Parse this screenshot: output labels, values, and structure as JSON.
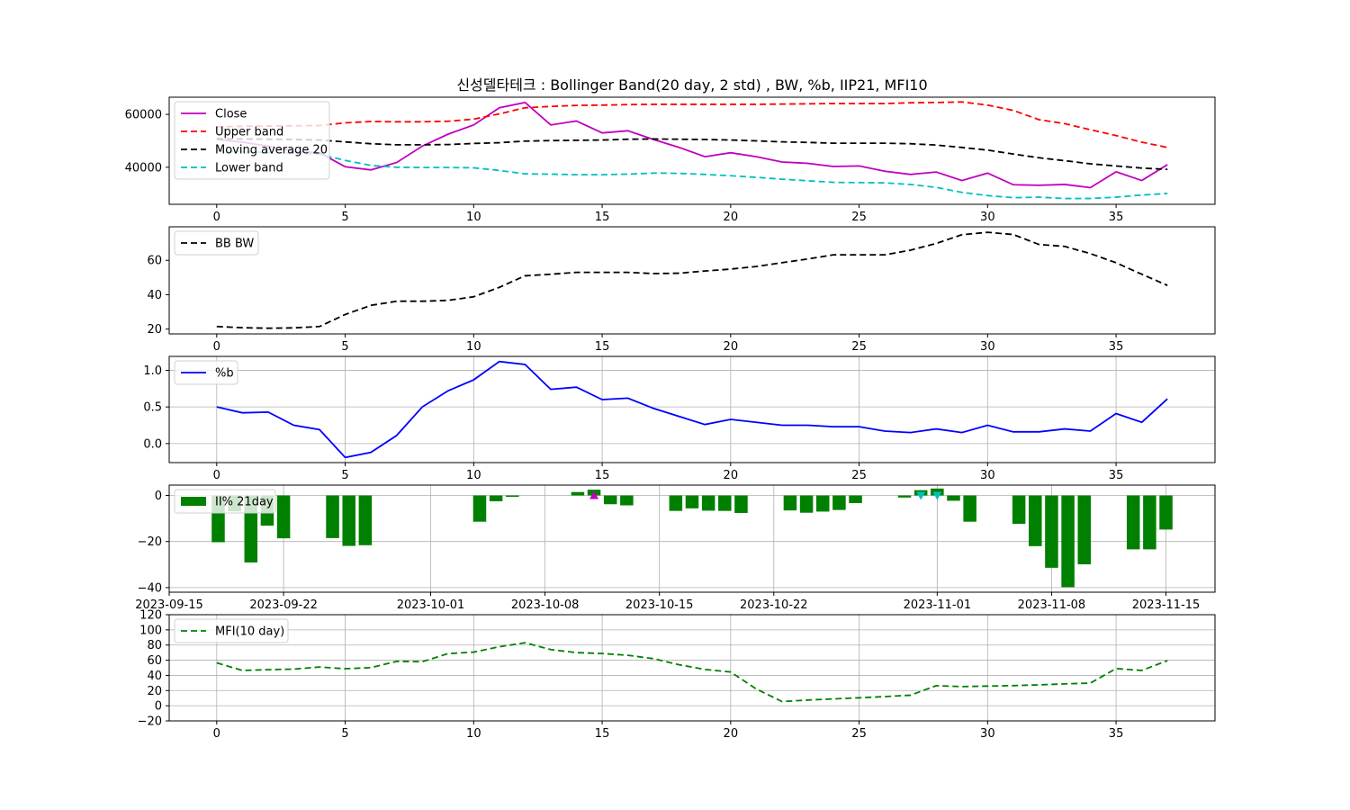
{
  "title": "신성델타테크 : Bollinger Band(20 day, 2 std) , BW, %b, IIP21, MFI10",
  "chart_data": [
    {
      "type": "line",
      "panel": "price",
      "x": [
        0,
        1,
        2,
        3,
        4,
        5,
        6,
        7,
        8,
        9,
        10,
        11,
        12,
        13,
        14,
        15,
        16,
        17,
        18,
        19,
        20,
        21,
        22,
        23,
        24,
        25,
        26,
        27,
        28,
        29,
        30,
        31,
        32,
        33,
        34,
        35,
        36,
        37
      ],
      "series": [
        {
          "name": "Close",
          "color": "#bf00bf",
          "style": "solid",
          "values": [
            50500,
            49500,
            48000,
            46000,
            45500,
            40200,
            39000,
            41800,
            48000,
            52500,
            56000,
            62500,
            64500,
            56000,
            57500,
            53000,
            53800,
            50500,
            47500,
            44000,
            45500,
            44000,
            42000,
            41500,
            40300,
            40500,
            38500,
            37300,
            38200,
            35000,
            37800,
            33400,
            33200,
            33500,
            32300,
            38300,
            35000,
            41000
          ]
        },
        {
          "name": "Upper band",
          "color": "#ff0000",
          "style": "dashed",
          "values": [
            55300,
            55500,
            55600,
            55700,
            55800,
            56800,
            57300,
            57200,
            57200,
            57400,
            58200,
            60200,
            62500,
            63000,
            63400,
            63500,
            63700,
            63800,
            63800,
            63800,
            63800,
            63800,
            63900,
            64000,
            64100,
            64100,
            64100,
            64400,
            64500,
            64700,
            63500,
            61500,
            58000,
            56500,
            54200,
            52000,
            49500,
            47500
          ]
        },
        {
          "name": "Moving average 20",
          "color": "#000000",
          "style": "dashed",
          "values": [
            50800,
            50700,
            50600,
            50500,
            50300,
            49600,
            48900,
            48500,
            48500,
            48600,
            49000,
            49300,
            49900,
            50100,
            50200,
            50300,
            50600,
            50700,
            50600,
            50500,
            50300,
            50000,
            49600,
            49400,
            49100,
            49100,
            49100,
            48900,
            48400,
            47500,
            46500,
            45000,
            43600,
            42500,
            41300,
            40500,
            39700,
            39200
          ]
        },
        {
          "name": "Lower band",
          "color": "#00bfbf",
          "style": "dashed",
          "values": [
            46200,
            45900,
            45600,
            45300,
            44900,
            42600,
            40700,
            40000,
            39900,
            39900,
            39800,
            38800,
            37500,
            37400,
            37200,
            37200,
            37400,
            37800,
            37700,
            37300,
            36800,
            36200,
            35500,
            34900,
            34300,
            34200,
            34100,
            33500,
            32400,
            30500,
            29300,
            28500,
            28700,
            28200,
            28200,
            28700,
            29500,
            30100
          ]
        }
      ],
      "xticks": [
        0,
        5,
        10,
        15,
        20,
        25,
        30,
        35
      ],
      "yticks": [
        40000,
        60000
      ],
      "xlim": [
        -1.85,
        38.85
      ],
      "ylim": [
        26000,
        66500
      ],
      "legend": "upper-left",
      "grid": false
    },
    {
      "type": "line",
      "panel": "bandwidth",
      "x": [
        0,
        1,
        2,
        3,
        4,
        5,
        6,
        7,
        8,
        9,
        10,
        11,
        12,
        13,
        14,
        15,
        16,
        17,
        18,
        19,
        20,
        21,
        22,
        23,
        24,
        25,
        26,
        27,
        28,
        29,
        30,
        31,
        32,
        33,
        34,
        35,
        36,
        37
      ],
      "series": [
        {
          "name": "BB BW",
          "color": "#000000",
          "style": "dashed",
          "values": [
            21.5,
            20.8,
            20.5,
            20.7,
            21.5,
            28.5,
            33.8,
            36.2,
            36.2,
            36.7,
            38.8,
            44.3,
            51.0,
            51.9,
            53.0,
            53.0,
            53.0,
            52.3,
            52.5,
            53.8,
            54.9,
            56.4,
            58.6,
            60.8,
            63.2,
            63.2,
            63.2,
            65.9,
            69.8,
            74.9,
            76.3,
            75.0,
            69.2,
            68.1,
            63.9,
            58.6,
            51.9,
            45.4
          ]
        }
      ],
      "xticks": [
        0,
        5,
        10,
        15,
        20,
        25,
        30,
        35
      ],
      "yticks": [
        20,
        40,
        60
      ],
      "xlim": [
        -1.85,
        38.85
      ],
      "ylim": [
        17.2,
        79.5
      ],
      "legend": "upper-left",
      "grid": false
    },
    {
      "type": "line",
      "panel": "percent-b",
      "x": [
        0,
        1,
        2,
        3,
        4,
        5,
        6,
        7,
        8,
        9,
        10,
        11,
        12,
        13,
        14,
        15,
        16,
        17,
        18,
        19,
        20,
        21,
        22,
        23,
        24,
        25,
        26,
        27,
        28,
        29,
        30,
        31,
        32,
        33,
        34,
        35,
        36,
        37
      ],
      "series": [
        {
          "name": "%b",
          "color": "#0000ff",
          "style": "solid",
          "values": [
            0.5,
            0.42,
            0.43,
            0.25,
            0.19,
            -0.19,
            -0.12,
            0.11,
            0.5,
            0.72,
            0.87,
            1.12,
            1.08,
            0.74,
            0.77,
            0.6,
            0.62,
            0.48,
            0.37,
            0.26,
            0.33,
            0.29,
            0.25,
            0.25,
            0.23,
            0.23,
            0.17,
            0.15,
            0.2,
            0.15,
            0.25,
            0.16,
            0.16,
            0.2,
            0.17,
            0.41,
            0.29,
            0.61
          ]
        }
      ],
      "xticks": [
        0,
        5,
        10,
        15,
        20,
        25,
        30,
        35
      ],
      "yticks": [
        0.0,
        0.5,
        1.0
      ],
      "ytick_labels": [
        "0.0",
        "0.5",
        "1.0"
      ],
      "xlim": [
        -1.85,
        38.85
      ],
      "ylim": [
        -0.26,
        1.19
      ],
      "legend": "upper-left",
      "grid": true
    },
    {
      "type": "bar",
      "panel": "ii-percent",
      "x_dates": [
        "2023-09-18",
        "2023-09-19",
        "2023-09-20",
        "2023-09-21",
        "2023-09-22",
        "2023-09-25",
        "2023-09-26",
        "2023-09-27",
        "2023-10-04",
        "2023-10-05",
        "2023-10-06",
        "2023-10-10",
        "2023-10-11",
        "2023-10-12",
        "2023-10-13",
        "2023-10-16",
        "2023-10-17",
        "2023-10-18",
        "2023-10-19",
        "2023-10-20",
        "2023-10-23",
        "2023-10-24",
        "2023-10-25",
        "2023-10-26",
        "2023-10-27",
        "2023-10-30",
        "2023-10-31",
        "2023-11-01",
        "2023-11-02",
        "2023-11-03",
        "2023-11-06",
        "2023-11-07",
        "2023-11-08",
        "2023-11-09",
        "2023-11-10",
        "2023-11-13",
        "2023-11-14",
        "2023-11-15"
      ],
      "series": [
        {
          "name": "II% 21day",
          "color": "#008000",
          "values": [
            -20.3,
            -6.9,
            -29.1,
            -13.1,
            -18.6,
            -18.5,
            -21.9,
            -21.6,
            -11.4,
            -2.5,
            -0.6,
            1.5,
            2.5,
            -3.8,
            -4.3,
            -6.7,
            -5.6,
            -6.6,
            -6.7,
            -7.6,
            -6.5,
            -7.5,
            -7.0,
            -6.3,
            -3.3,
            -0.9,
            2.3,
            3.0,
            -2.3,
            -11.4,
            -12.3,
            -22.0,
            -31.4,
            -39.8,
            -29.9,
            -23.4,
            -23.4,
            -14.8
          ]
        }
      ],
      "markers": [
        {
          "date": "2023-10-11",
          "value": 0,
          "shape": "triangle-up",
          "color": "#bf00bf"
        },
        {
          "date": "2023-10-31",
          "value": 0,
          "shape": "triangle-down",
          "color": "#00bfbf"
        },
        {
          "date": "2023-11-01",
          "value": 0,
          "shape": "triangle-down",
          "color": "#00bfbf"
        }
      ],
      "xtick_dates": [
        "2023-09-15",
        "2023-09-22",
        "2023-10-01",
        "2023-10-08",
        "2023-10-15",
        "2023-10-22",
        "2023-11-01",
        "2023-11-08",
        "2023-11-15"
      ],
      "yticks": [
        -40,
        -20,
        0
      ],
      "ytick_labels": [
        "−40",
        "−20",
        "0"
      ],
      "xlim_dates": [
        "2023-09-15",
        "2023-11-18"
      ],
      "ylim": [
        -42,
        4.5
      ],
      "legend": "upper-left",
      "grid": true
    },
    {
      "type": "line",
      "panel": "mfi",
      "x": [
        0,
        1,
        2,
        3,
        4,
        5,
        6,
        7,
        8,
        9,
        10,
        11,
        12,
        13,
        14,
        15,
        16,
        17,
        18,
        19,
        20,
        21,
        22,
        23,
        24,
        25,
        26,
        27,
        28,
        29,
        30,
        31,
        32,
        33,
        34,
        35,
        36,
        37
      ],
      "series": [
        {
          "name": "MFI(10 day)",
          "color": "#008000",
          "style": "dashed",
          "values": [
            56.5,
            46.5,
            47.5,
            48.3,
            51.0,
            48.8,
            50.2,
            58.5,
            58.0,
            68.7,
            70.7,
            77.8,
            83.0,
            74.0,
            70.0,
            68.8,
            66.5,
            62.0,
            54.0,
            47.8,
            44.5,
            22.0,
            5.5,
            7.5,
            9.0,
            10.5,
            12.0,
            13.9,
            26.4,
            25.2,
            25.9,
            26.5,
            27.5,
            28.8,
            29.8,
            49.0,
            46.5,
            59.5
          ]
        }
      ],
      "xticks": [
        0,
        5,
        10,
        15,
        20,
        25,
        30,
        35
      ],
      "yticks": [
        -20,
        0,
        20,
        40,
        60,
        80,
        100,
        120
      ],
      "ytick_labels": [
        "−20",
        "0",
        "20",
        "40",
        "60",
        "80",
        "100",
        "120"
      ],
      "xlim": [
        -1.85,
        38.85
      ],
      "ylim": [
        -20,
        120
      ],
      "legend": "upper-left",
      "grid": true
    }
  ]
}
